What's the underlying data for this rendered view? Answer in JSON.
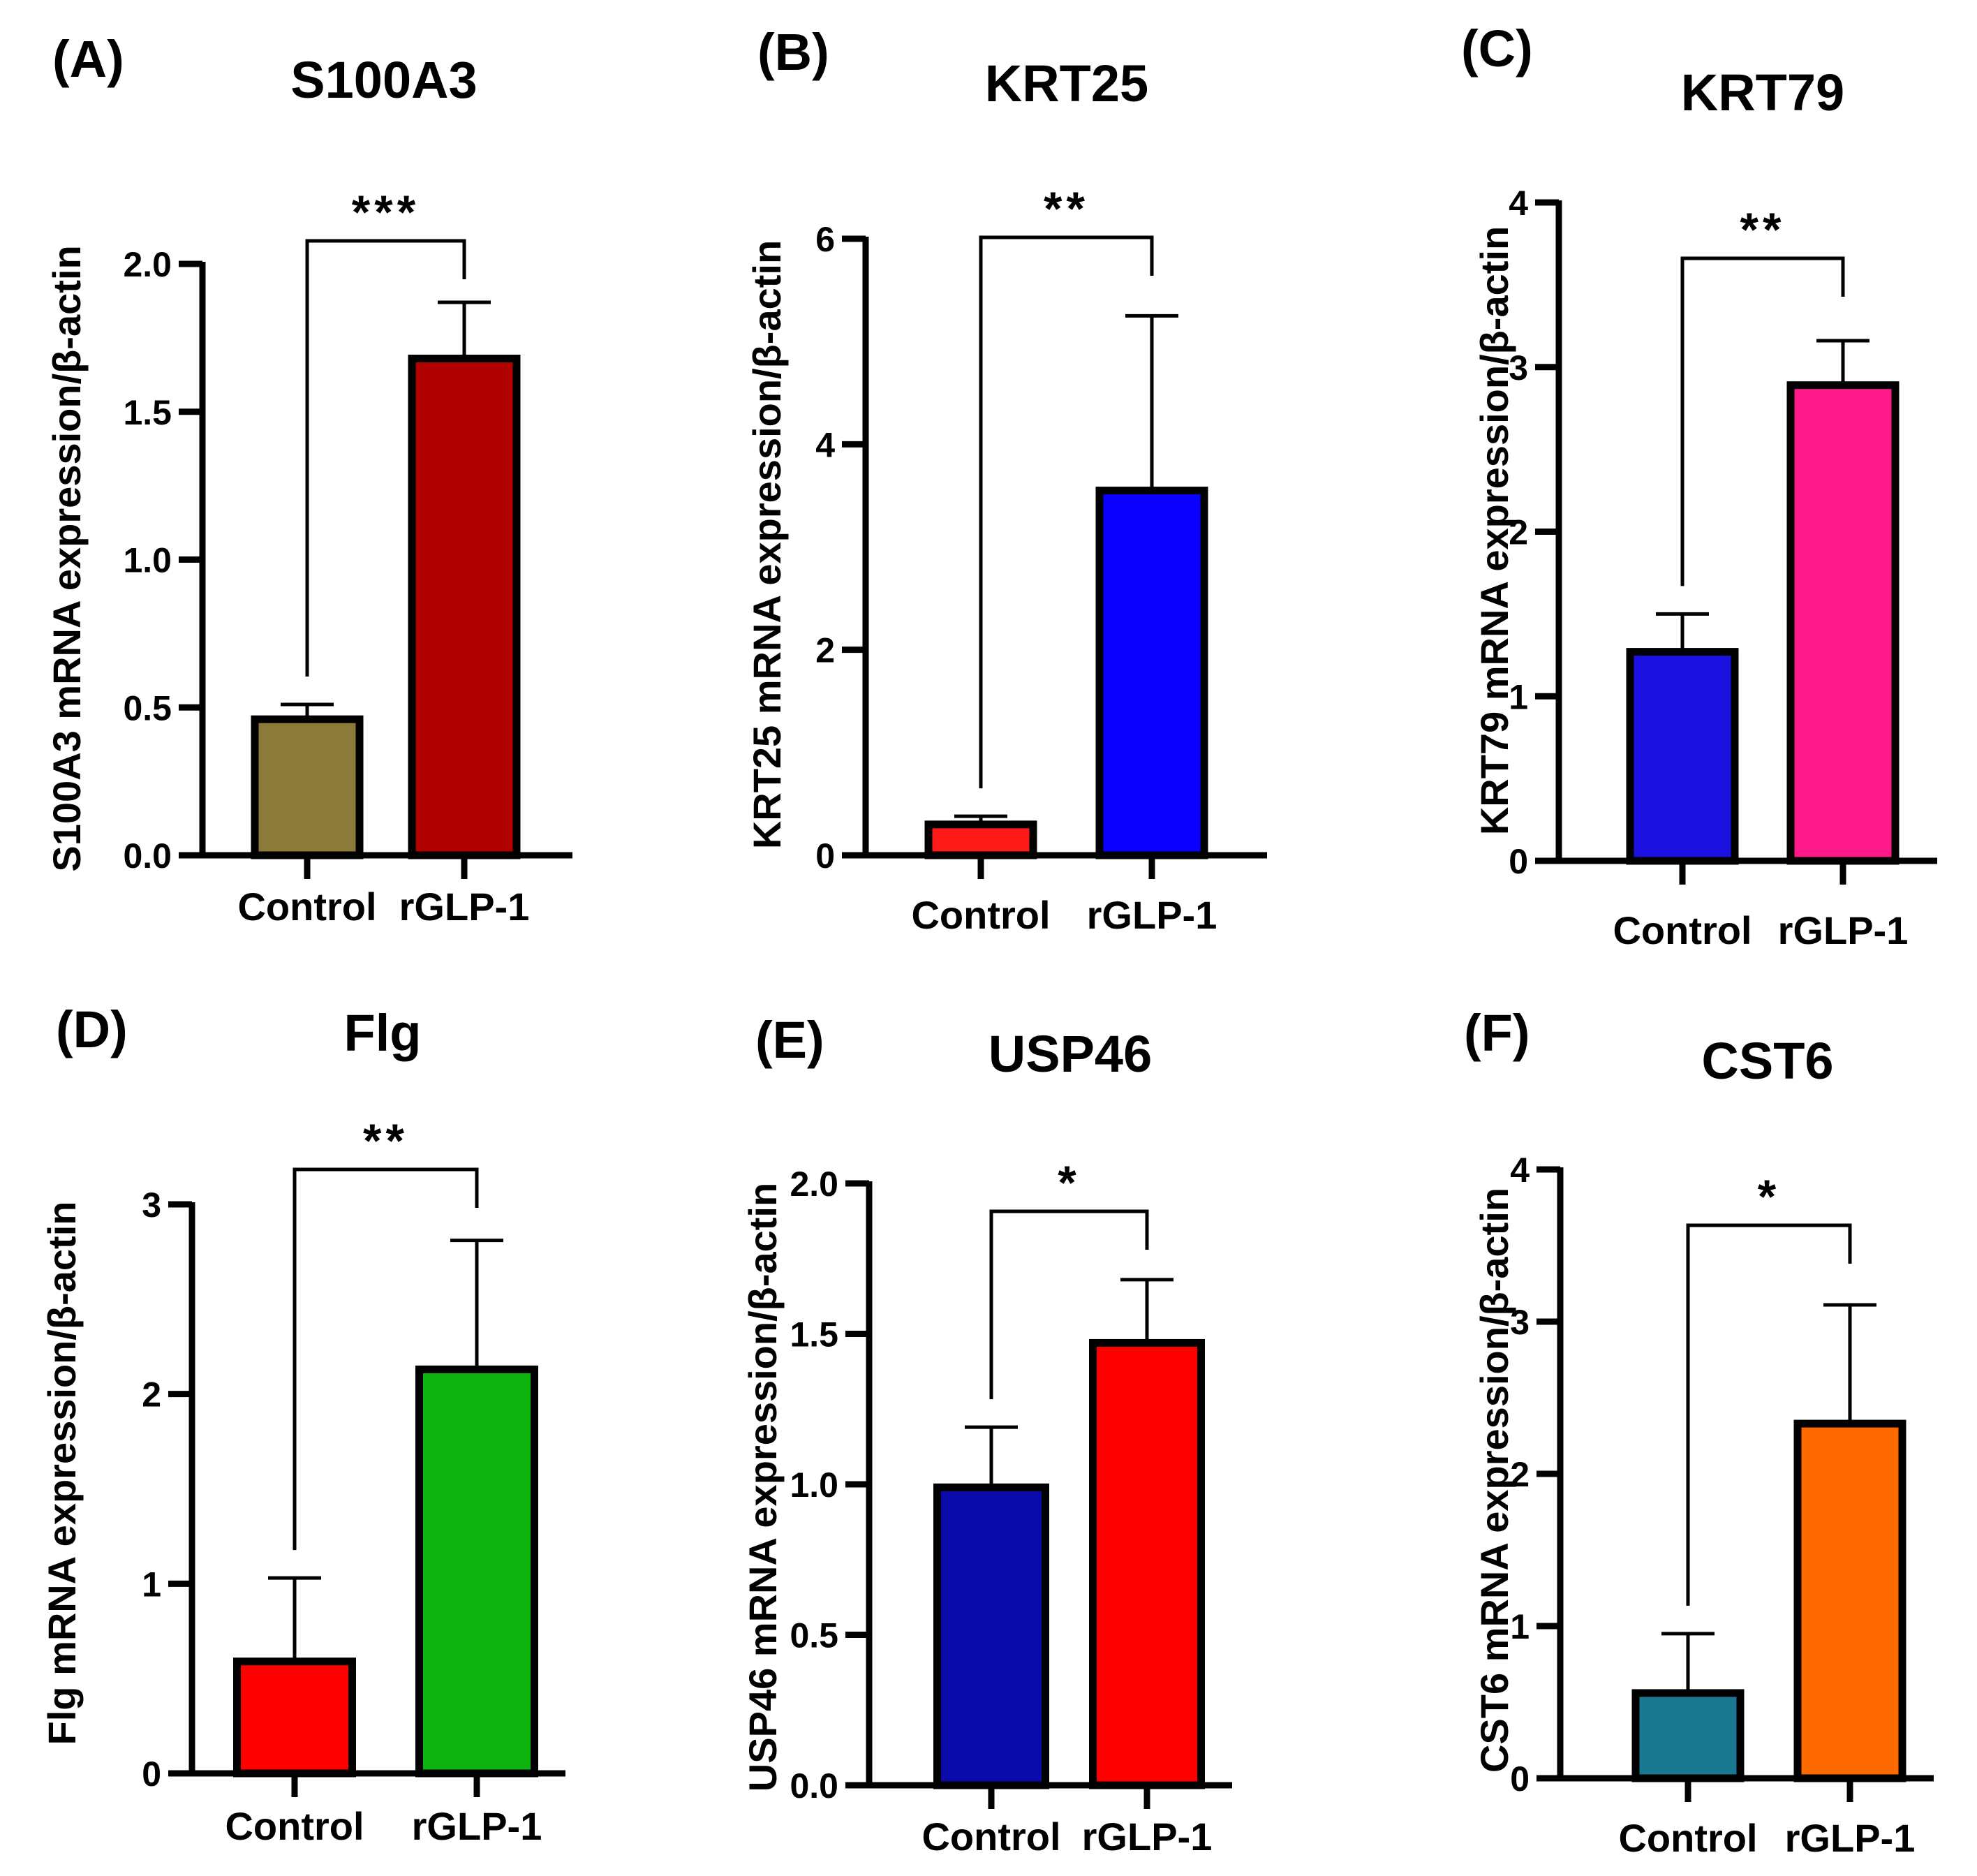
{
  "chart_data": [
    {
      "type": "bar",
      "panel_label": "(A)",
      "title": "S100A3",
      "ylabel": "S100A3 mRNA expression/β-actin",
      "xlabel": "",
      "categories": [
        "Control",
        "rGLP-1"
      ],
      "values": [
        0.46,
        1.68
      ],
      "errors": [
        0.05,
        0.19
      ],
      "colors": [
        "#8c7a3a",
        "#b00000"
      ],
      "ylim": [
        0,
        2.0
      ],
      "yticks": [
        "0.0",
        "0.5",
        "1.0",
        "1.5",
        "2.0"
      ],
      "significance": "***"
    },
    {
      "type": "bar",
      "panel_label": "(B)",
      "title": "KRT25",
      "ylabel": "KRT25 mRNA expression/β-actin",
      "xlabel": "",
      "categories": [
        "Control",
        "rGLP-1"
      ],
      "values": [
        0.3,
        3.55
      ],
      "errors": [
        0.08,
        1.7
      ],
      "colors": [
        "#ff1a1a",
        "#0a00ff"
      ],
      "ylim": [
        0,
        6
      ],
      "yticks": [
        "0",
        "2",
        "4",
        "6"
      ],
      "significance": "**"
    },
    {
      "type": "bar",
      "panel_label": "(C)",
      "title": "KRT79",
      "ylabel": "KRT79 mRNA expression/β-actin",
      "xlabel": "",
      "categories": [
        "Control",
        "rGLP-1"
      ],
      "values": [
        1.27,
        2.89
      ],
      "errors": [
        0.23,
        0.27
      ],
      "colors": [
        "#1a10e0",
        "#ff1a8c"
      ],
      "ylim": [
        0,
        4
      ],
      "yticks": [
        "0",
        "1",
        "2",
        "3",
        "4"
      ],
      "significance": "**"
    },
    {
      "type": "bar",
      "panel_label": "(D)",
      "title": "Flg",
      "ylabel": "Flg mRNA expression/β-actin",
      "xlabel": "",
      "categories": [
        "Control",
        "rGLP-1"
      ],
      "values": [
        0.59,
        2.13
      ],
      "errors": [
        0.44,
        0.68
      ],
      "colors": [
        "#ff0000",
        "#10b410"
      ],
      "ylim": [
        0,
        3
      ],
      "yticks": [
        "0",
        "1",
        "2",
        "3"
      ],
      "significance": "**"
    },
    {
      "type": "bar",
      "panel_label": "(E)",
      "title": "USP46",
      "ylabel": "USP46 mRNA expression/β-actin",
      "xlabel": "",
      "categories": [
        "Control",
        "rGLP-1"
      ],
      "values": [
        0.99,
        1.47
      ],
      "errors": [
        0.2,
        0.21
      ],
      "colors": [
        "#0a0aa8",
        "#ff0000"
      ],
      "ylim": [
        0,
        2.0
      ],
      "yticks": [
        "0.0",
        "0.5",
        "1.0",
        "1.5",
        "2.0"
      ],
      "significance": "*"
    },
    {
      "type": "bar",
      "panel_label": "(F)",
      "title": "CST6",
      "ylabel": "CST6 mRNA expression/β-actin",
      "xlabel": "",
      "categories": [
        "Control",
        "rGLP-1"
      ],
      "values": [
        0.56,
        2.33
      ],
      "errors": [
        0.39,
        0.78
      ],
      "colors": [
        "#1a7890",
        "#ff6a00"
      ],
      "ylim": [
        0,
        4
      ],
      "yticks": [
        "0",
        "1",
        "2",
        "3",
        "4"
      ],
      "significance": "*"
    }
  ]
}
